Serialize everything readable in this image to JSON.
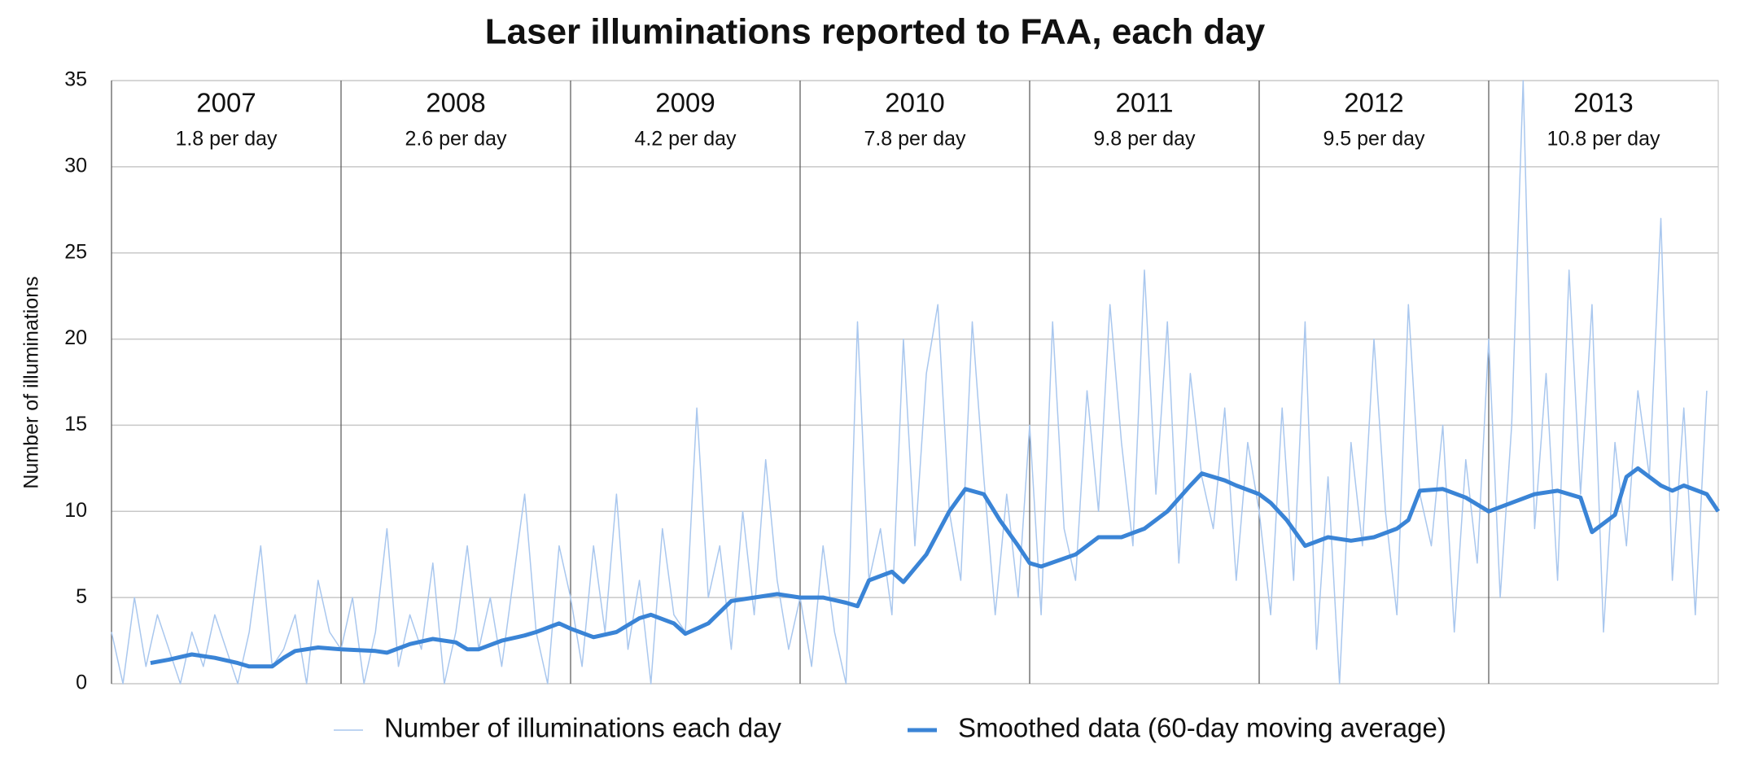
{
  "chart_data": {
    "type": "line",
    "title": "Laser illuminations reported to FAA, each day",
    "ylabel": "Number of illuminations",
    "xlim": [
      2007,
      2014
    ],
    "xticks": [
      {
        "value": 2007,
        "label": "2007"
      },
      {
        "value": 2008,
        "label": "2008"
      },
      {
        "value": 2009,
        "label": "2009"
      },
      {
        "value": 2010,
        "label": "2010"
      },
      {
        "value": 2011,
        "label": "2011"
      },
      {
        "value": 2012,
        "label": "2012"
      },
      {
        "value": 2013,
        "label": "2013"
      }
    ],
    "annotations": [
      "1.8 per day",
      "2.6 per day",
      "4.2 per day",
      "7.8 per day",
      "9.8 per day",
      "9.5 per day",
      "10.8 per day"
    ],
    "ylim": [
      0,
      35
    ],
    "yticks": [
      0,
      5,
      10,
      15,
      20,
      25,
      30,
      35
    ],
    "grid": true,
    "legend": "bottom",
    "series": [
      {
        "name": "Number of illuminations each day",
        "color": "#a9c7ee",
        "width": 1.5,
        "x": [
          2007.0,
          2007.05,
          2007.1,
          2007.15,
          2007.2,
          2007.25,
          2007.3,
          2007.35,
          2007.4,
          2007.45,
          2007.5,
          2007.55,
          2007.6,
          2007.65,
          2007.7,
          2007.75,
          2007.8,
          2007.85,
          2007.9,
          2007.95,
          2008.0,
          2008.05,
          2008.1,
          2008.15,
          2008.2,
          2008.25,
          2008.3,
          2008.35,
          2008.4,
          2008.45,
          2008.5,
          2008.55,
          2008.6,
          2008.65,
          2008.7,
          2008.75,
          2008.8,
          2008.85,
          2008.9,
          2008.95,
          2009.0,
          2009.05,
          2009.1,
          2009.15,
          2009.2,
          2009.25,
          2009.3,
          2009.35,
          2009.4,
          2009.45,
          2009.5,
          2009.55,
          2009.6,
          2009.65,
          2009.7,
          2009.75,
          2009.8,
          2009.85,
          2009.9,
          2009.95,
          2010.0,
          2010.05,
          2010.1,
          2010.15,
          2010.2,
          2010.25,
          2010.3,
          2010.35,
          2010.4,
          2010.45,
          2010.5,
          2010.55,
          2010.6,
          2010.65,
          2010.7,
          2010.75,
          2010.8,
          2010.85,
          2010.9,
          2010.95,
          2011.0,
          2011.05,
          2011.1,
          2011.15,
          2011.2,
          2011.25,
          2011.3,
          2011.35,
          2011.4,
          2011.45,
          2011.5,
          2011.55,
          2011.6,
          2011.65,
          2011.7,
          2011.75,
          2011.8,
          2011.85,
          2011.9,
          2011.95,
          2012.0,
          2012.05,
          2012.1,
          2012.15,
          2012.2,
          2012.25,
          2012.3,
          2012.35,
          2012.4,
          2012.45,
          2012.5,
          2012.55,
          2012.6,
          2012.65,
          2012.7,
          2012.75,
          2012.8,
          2012.85,
          2012.9,
          2012.95,
          2013.0,
          2013.05,
          2013.1,
          2013.15,
          2013.2,
          2013.25,
          2013.3,
          2013.35,
          2013.4,
          2013.45,
          2013.5,
          2013.55,
          2013.6,
          2013.65,
          2013.7,
          2013.75,
          2013.8,
          2013.85,
          2013.9,
          2013.95
        ],
        "values": [
          3,
          0,
          5,
          1,
          4,
          2,
          0,
          3,
          1,
          4,
          2,
          0,
          3,
          8,
          1,
          2,
          4,
          0,
          6,
          3,
          2,
          5,
          0,
          3,
          9,
          1,
          4,
          2,
          7,
          0,
          3,
          8,
          2,
          5,
          1,
          6,
          11,
          3,
          0,
          8,
          5,
          1,
          8,
          3,
          11,
          2,
          6,
          0,
          9,
          4,
          3,
          16,
          5,
          8,
          2,
          10,
          4,
          13,
          6,
          2,
          5,
          1,
          8,
          3,
          0,
          21,
          6,
          9,
          4,
          20,
          8,
          18,
          22,
          10,
          6,
          21,
          12,
          4,
          11,
          5,
          15,
          4,
          21,
          9,
          6,
          17,
          10,
          22,
          14,
          8,
          24,
          11,
          21,
          7,
          18,
          12,
          9,
          16,
          6,
          14,
          10,
          4,
          16,
          6,
          21,
          2,
          12,
          0,
          14,
          8,
          20,
          10,
          4,
          22,
          11,
          8,
          15,
          3,
          13,
          7,
          20,
          5,
          15,
          35,
          9,
          18,
          6,
          24,
          11,
          22,
          3,
          14,
          8,
          17,
          12,
          27,
          6,
          16,
          4,
          17
        ]
      },
      {
        "name": "Smoothed data (60-day moving average)",
        "color": "#3a84d6",
        "width": 5,
        "x": [
          2007.17,
          2007.25,
          2007.35,
          2007.45,
          2007.55,
          2007.6,
          2007.7,
          2007.75,
          2007.8,
          2007.9,
          2008.0,
          2008.15,
          2008.2,
          2008.3,
          2008.4,
          2008.5,
          2008.55,
          2008.6,
          2008.7,
          2008.8,
          2008.85,
          2008.95,
          2009.0,
          2009.1,
          2009.2,
          2009.3,
          2009.35,
          2009.45,
          2009.5,
          2009.6,
          2009.7,
          2009.8,
          2009.9,
          2010.0,
          2010.1,
          2010.2,
          2010.25,
          2010.3,
          2010.4,
          2010.45,
          2010.55,
          2010.65,
          2010.72,
          2010.8,
          2010.87,
          2010.95,
          2011.0,
          2011.05,
          2011.2,
          2011.3,
          2011.4,
          2011.5,
          2011.6,
          2011.7,
          2011.75,
          2011.85,
          2011.9,
          2012.0,
          2012.05,
          2012.12,
          2012.2,
          2012.3,
          2012.4,
          2012.5,
          2012.6,
          2012.65,
          2012.7,
          2012.8,
          2012.9,
          2013.0,
          2013.1,
          2013.2,
          2013.3,
          2013.4,
          2013.45,
          2013.55,
          2013.6,
          2013.65,
          2013.75,
          2013.8,
          2013.85,
          2013.95,
          2014.0
        ],
        "values": [
          1.2,
          1.4,
          1.7,
          1.5,
          1.2,
          1.0,
          1.0,
          1.5,
          1.9,
          2.1,
          2.0,
          1.9,
          1.8,
          2.3,
          2.6,
          2.4,
          2.0,
          2.0,
          2.5,
          2.8,
          3.0,
          3.5,
          3.2,
          2.7,
          3.0,
          3.8,
          4.0,
          3.5,
          2.9,
          3.5,
          4.8,
          5.0,
          5.2,
          5.0,
          5.0,
          4.7,
          4.5,
          6.0,
          6.5,
          5.9,
          7.5,
          10.0,
          11.3,
          11.0,
          9.5,
          8.0,
          7.0,
          6.8,
          7.5,
          8.5,
          8.5,
          9.0,
          10.0,
          11.5,
          12.2,
          11.8,
          11.5,
          11.0,
          10.5,
          9.5,
          8.0,
          8.5,
          8.3,
          8.5,
          9.0,
          9.5,
          11.2,
          11.3,
          10.8,
          10.0,
          10.5,
          11.0,
          11.2,
          10.8,
          8.8,
          9.8,
          12.0,
          12.5,
          11.5,
          11.2,
          11.5,
          11.0,
          10.0
        ]
      }
    ]
  }
}
